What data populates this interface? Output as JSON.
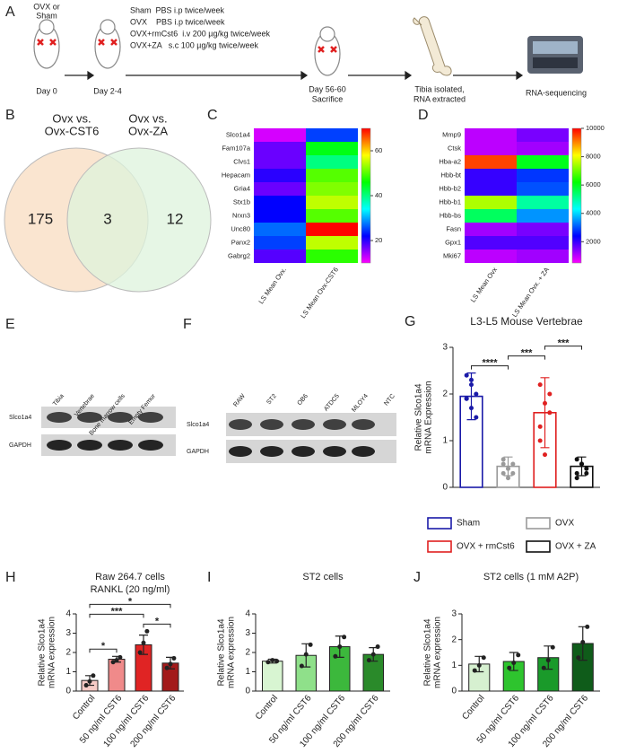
{
  "figure": {
    "panel_a": {
      "label": "A",
      "start": [
        "OVX or",
        "Sham"
      ],
      "day_start": "Day 0",
      "day_surgery": "Day 2-4",
      "treatments": [
        "Sham  PBS i.p twice/week",
        "OVX    PBS i.p twice/week",
        "OVX+rmCst6  i.v 200 µg/kg twice/week",
        "OVX+ZA   s.c 100 µg/kg twice/week"
      ],
      "day_end": "Day 56-60",
      "sacrifice": "Sacrifice",
      "tibia": [
        "Tibia isolated,",
        "RNA extracted"
      ],
      "sequencing": "RNA-sequencing"
    },
    "panel_e": {
      "label": "E",
      "columns": [
        "Tibia",
        "Vertebrae",
        "Bone marrow cells",
        "Empty Femur"
      ],
      "rows": [
        "Slco1a4",
        "GAPDH"
      ]
    },
    "panel_f": {
      "label": "F",
      "columns": [
        "RAW",
        "ST2",
        "OB6",
        "ATDC5",
        "MLOY4",
        "NTC"
      ],
      "rows": [
        "Slco1a4",
        "GAPDH"
      ]
    }
  },
  "chart_data": [
    {
      "type": "venn",
      "label": "B",
      "sets": [
        {
          "name": [
            "Ovx vs.",
            "Ovx-CST6"
          ],
          "color": "#f8dcc0",
          "only": 175
        },
        {
          "name": [
            "Ovx vs.",
            "Ovx-ZA"
          ],
          "color": "#def3dc",
          "only": 12
        }
      ],
      "overlap": 3
    },
    {
      "type": "heatmap",
      "label": "C",
      "rows": [
        "Slco1a4",
        "Fam107a",
        "Clvs1",
        "Hepacam",
        "Gria4",
        "Stx1b",
        "Nrxn3",
        "Unc80",
        "Panx2",
        "Gabrg2"
      ],
      "columns": [
        "LS Mean Ovx.",
        "LS Mean Ovx-CST6"
      ],
      "values": [
        [
          12,
          25
        ],
        [
          17,
          45
        ],
        [
          17,
          40
        ],
        [
          20,
          50
        ],
        [
          17,
          52
        ],
        [
          22,
          55
        ],
        [
          22,
          50
        ],
        [
          27,
          70
        ],
        [
          25,
          55
        ],
        [
          18,
          48
        ]
      ],
      "clim": [
        10,
        70
      ],
      "cticks": [
        20,
        40,
        60
      ]
    },
    {
      "type": "heatmap",
      "label": "D",
      "rows": [
        "Mmp9",
        "Ctsk",
        "Hba-a2",
        "Hbb-bt",
        "Hbb-b2",
        "Hbb-b1",
        "Hbb-bs",
        "Fasn",
        "Gpx1",
        "Mki67"
      ],
      "columns": [
        "LS Mean Ovx",
        "LS Mean Ovx. + ZA"
      ],
      "values": [
        [
          1000,
          1500
        ],
        [
          1000,
          1200
        ],
        [
          9500,
          6000
        ],
        [
          2000,
          2800
        ],
        [
          2000,
          3000
        ],
        [
          7500,
          5000
        ],
        [
          5500,
          3500
        ],
        [
          1200,
          1500
        ],
        [
          1800,
          1800
        ],
        [
          1000,
          1200
        ]
      ],
      "clim": [
        500,
        10000
      ],
      "cticks": [
        2000,
        4000,
        6000,
        8000,
        10000
      ]
    },
    {
      "type": "bar",
      "label": "G",
      "title": "L3-L5 Mouse Vertebrae",
      "ylabel": [
        "Relative Slco1a4",
        "mRNA Expression"
      ],
      "ylim": [
        0,
        3
      ],
      "yticks": [
        0,
        1,
        2,
        3
      ],
      "series": [
        {
          "name": "Sham",
          "color": "#1a1aa8",
          "values": [
            1.95
          ],
          "errors": [
            0.5
          ],
          "points": [
            2.4,
            2.2,
            2.0,
            1.9,
            1.7,
            1.5,
            1.9,
            2.3
          ]
        },
        {
          "name": "OVX",
          "color": "#9a9a9a",
          "values": [
            0.45
          ],
          "errors": [
            0.2
          ],
          "points": [
            0.6,
            0.4,
            0.3,
            0.5,
            0.2,
            0.5,
            0.3
          ]
        },
        {
          "name": "OVX + rmCst6",
          "color": "#e02020",
          "values": [
            1.6
          ],
          "errors": [
            0.75
          ],
          "points": [
            2.2,
            1.8,
            1.6,
            1.0,
            0.7,
            2.0,
            1.3
          ]
        },
        {
          "name": "OVX + ZA",
          "color": "#111111",
          "values": [
            0.45
          ],
          "errors": [
            0.2
          ],
          "points": [
            0.6,
            0.5,
            0.3,
            0.2,
            0.5,
            0.4,
            0.3
          ]
        }
      ],
      "significance": [
        {
          "from": 0,
          "to": 1,
          "label": "****"
        },
        {
          "from": 1,
          "to": 2,
          "label": "***"
        },
        {
          "from": 2,
          "to": 3,
          "label": "***"
        }
      ]
    },
    {
      "type": "bar",
      "label": "H",
      "title": "Raw 264.7 cells",
      "subtitle": "RANKL (20 ng/ml)",
      "ylabel": [
        "Relative Slco1a4",
        "mRNA expression"
      ],
      "ylim": [
        0,
        4
      ],
      "yticks": [
        0,
        1,
        2,
        3,
        4
      ],
      "categories": [
        "Control",
        "50 ng/ml CST6",
        "100 ng/ml CST6",
        "200 ng/ml CST6"
      ],
      "values": [
        0.55,
        1.65,
        2.4,
        1.45
      ],
      "errors": [
        0.25,
        0.15,
        0.5,
        0.3
      ],
      "colors": [
        "#f6cbc6",
        "#f08a8a",
        "#e02424",
        "#a31a1a"
      ],
      "points": [
        [
          0.3,
          0.5,
          0.8
        ],
        [
          1.5,
          1.6,
          1.75
        ],
        [
          2.0,
          2.5,
          3.1
        ],
        [
          1.2,
          1.4,
          1.7
        ]
      ],
      "significance": [
        {
          "from": 0,
          "to": 1,
          "label": "*"
        },
        {
          "from": 2,
          "to": 3,
          "label": "*"
        },
        {
          "from": 0,
          "to": 2,
          "label": "***"
        },
        {
          "from": 0,
          "to": 3,
          "label": "*"
        }
      ]
    },
    {
      "type": "bar",
      "label": "I",
      "title": "ST2 cells",
      "ylabel": [
        "Relative Slco1a4",
        "mRNA expression"
      ],
      "ylim": [
        0,
        4
      ],
      "yticks": [
        0,
        1,
        2,
        3,
        4
      ],
      "categories": [
        "Control",
        "50 ng/ml CST6",
        "100 ng/ml CST6",
        "200 ng/ml CST6"
      ],
      "values": [
        1.55,
        1.85,
        2.3,
        1.9
      ],
      "errors": [
        0.1,
        0.6,
        0.55,
        0.35
      ],
      "colors": [
        "#d8f5d2",
        "#8fe08a",
        "#3cb83c",
        "#2a8a2a"
      ],
      "points": [
        [
          1.5,
          1.6,
          1.55
        ],
        [
          1.3,
          1.9,
          2.4
        ],
        [
          1.8,
          2.3,
          2.8
        ],
        [
          1.6,
          1.9,
          2.3
        ]
      ]
    },
    {
      "type": "bar",
      "label": "J",
      "title": "ST2 cells (1 mM A2P)",
      "ylabel": [
        "Relative Slco1a4",
        "mRNA expression"
      ],
      "ylim": [
        0,
        3
      ],
      "yticks": [
        0,
        1,
        2,
        3
      ],
      "categories": [
        "Control",
        "50 ng/ml CST6",
        "100 ng/ml CST6",
        "200 ng/ml CST6"
      ],
      "values": [
        1.05,
        1.15,
        1.3,
        1.85
      ],
      "errors": [
        0.3,
        0.35,
        0.45,
        0.65
      ],
      "colors": [
        "#d6f0d0",
        "#2ec42e",
        "#1a9a2a",
        "#0f5c1a"
      ],
      "points": [
        [
          0.8,
          1.0,
          1.3
        ],
        [
          0.9,
          1.1,
          1.4
        ],
        [
          0.9,
          1.2,
          1.7
        ],
        [
          1.3,
          1.9,
          2.5
        ]
      ]
    }
  ]
}
